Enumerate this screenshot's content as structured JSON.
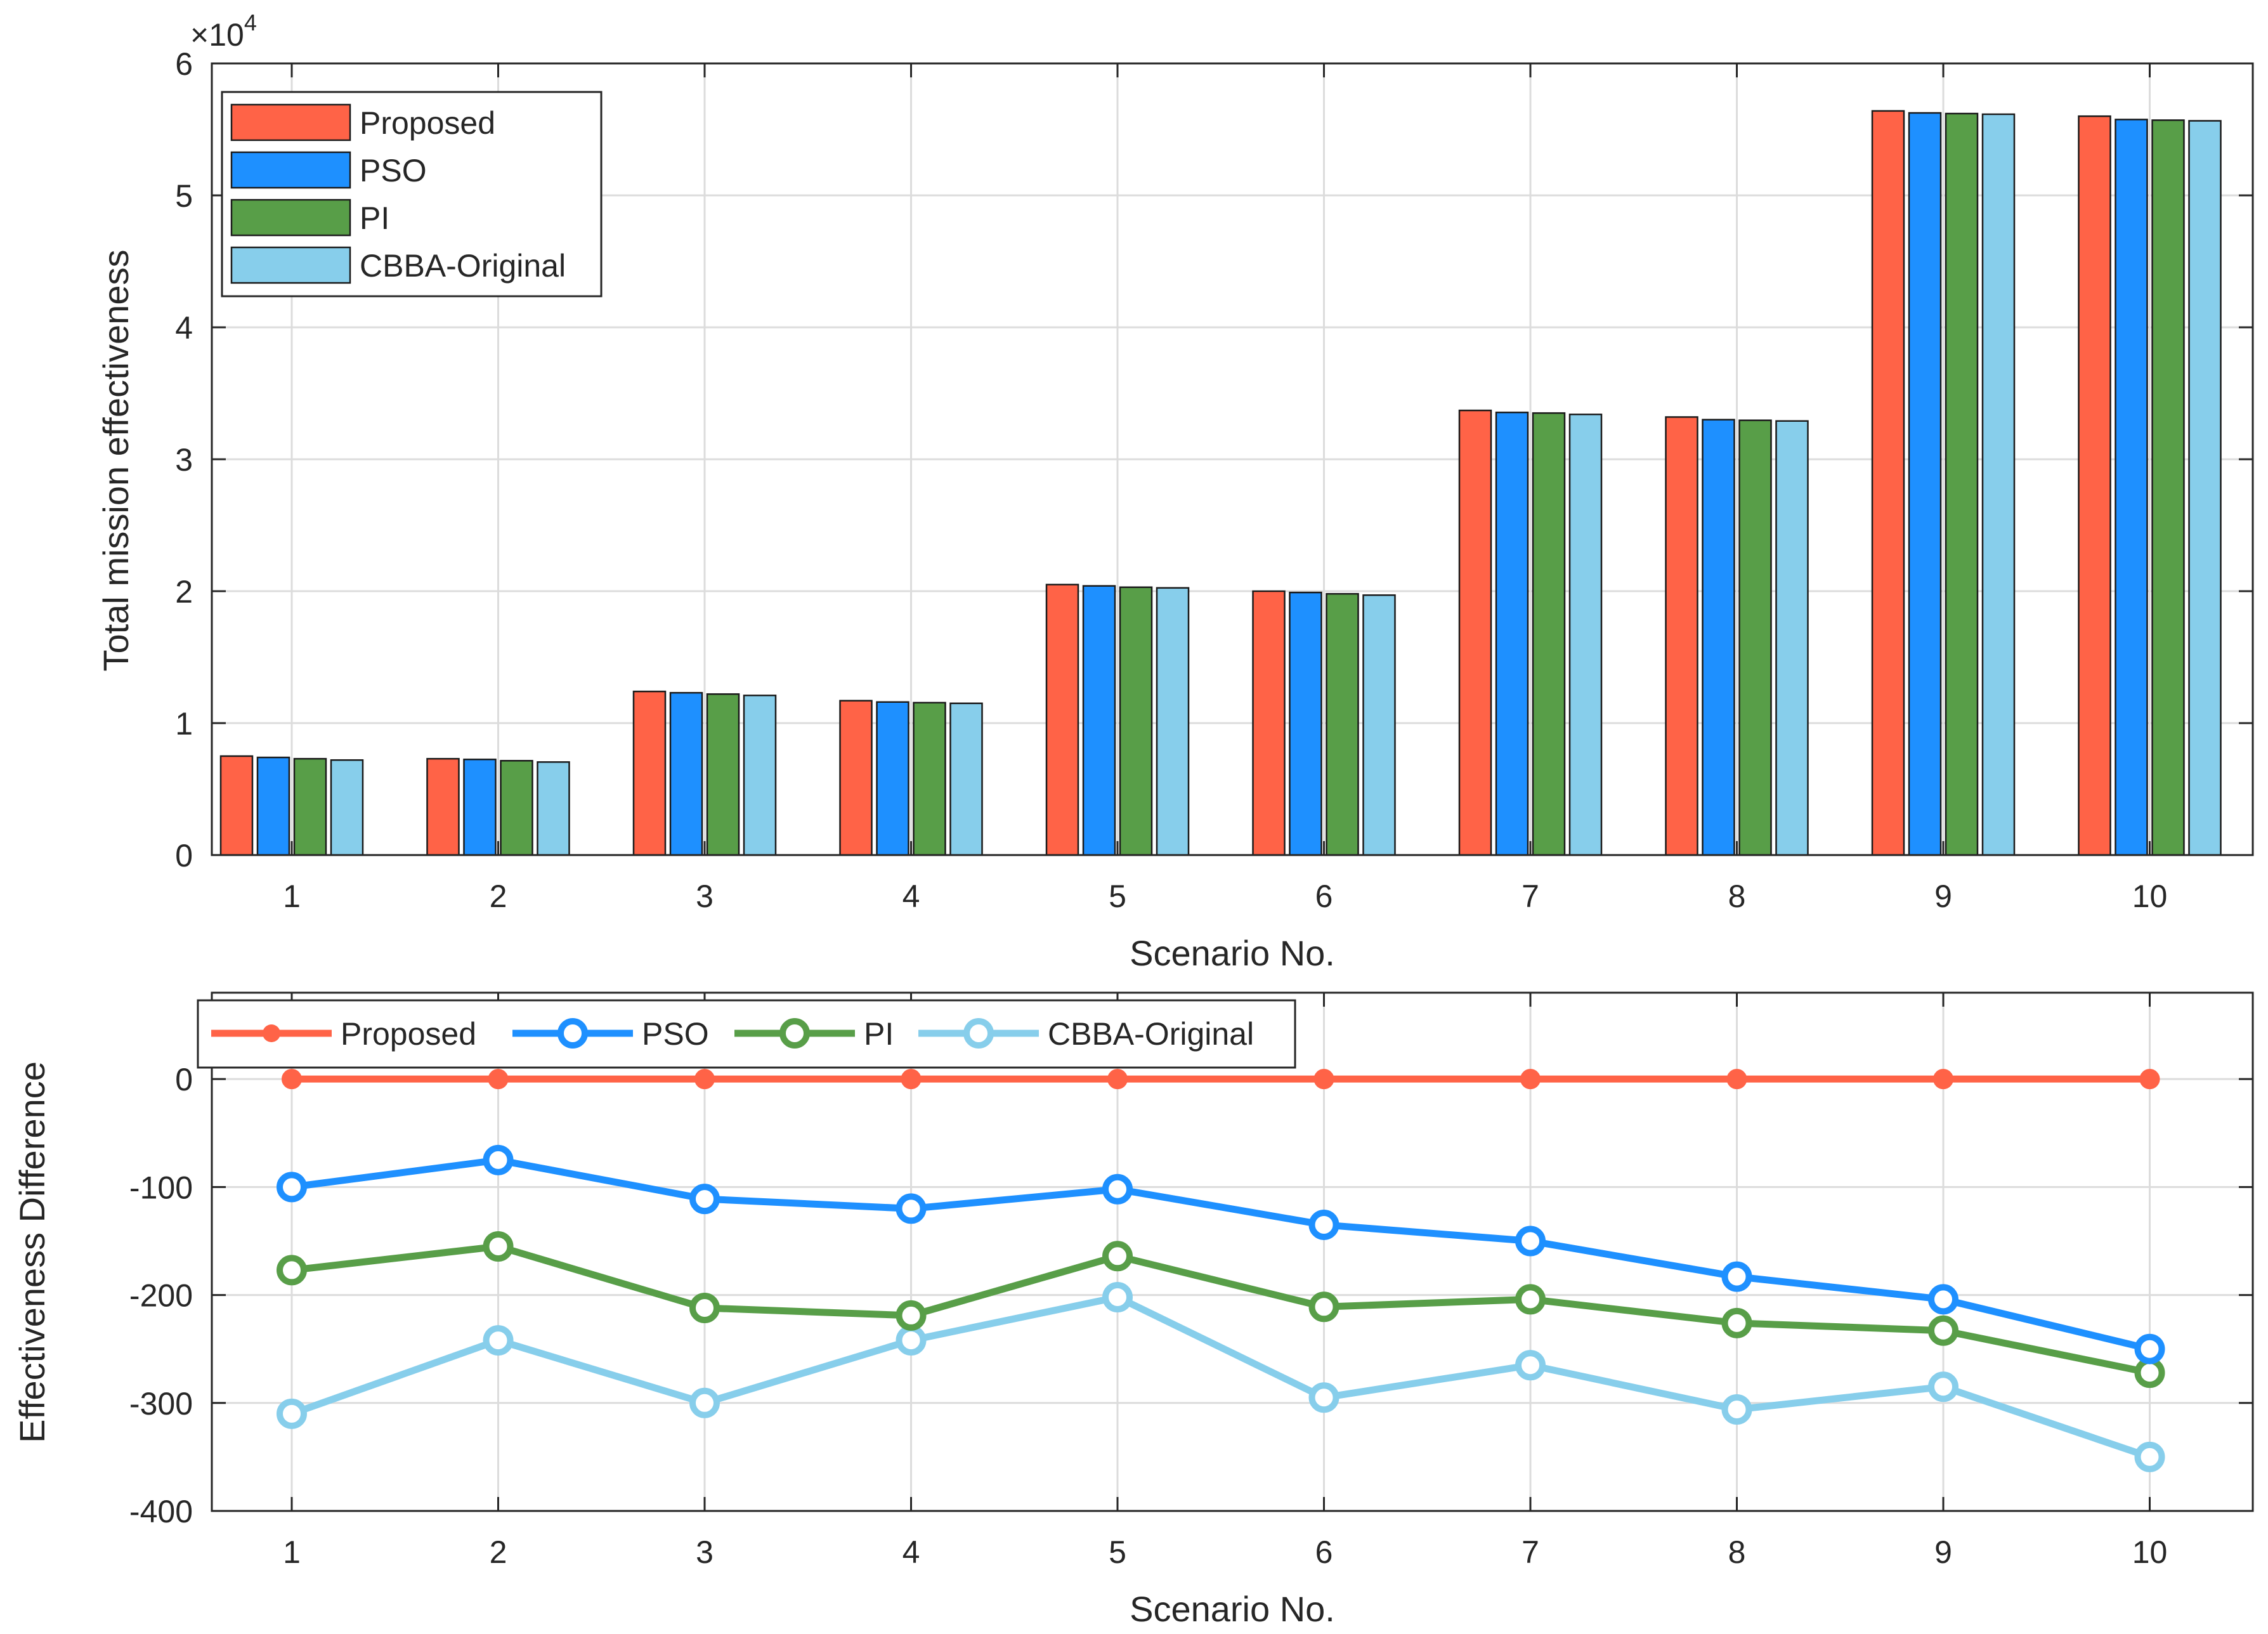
{
  "chart_data": [
    {
      "type": "bar",
      "title": "",
      "xlabel": "Scenario No.",
      "ylabel": "Total mission effectiveness",
      "y_exponent_label": "×10",
      "y_exponent_power": "4",
      "categories": [
        "1",
        "2",
        "3",
        "4",
        "5",
        "6",
        "7",
        "8",
        "9",
        "10"
      ],
      "ylim": [
        0,
        6
      ],
      "yticks": [
        "0",
        "1",
        "2",
        "3",
        "4",
        "5",
        "6"
      ],
      "grid": true,
      "legend_position": "top-left",
      "series": [
        {
          "name": "Proposed",
          "color": "#ff6347",
          "values": [
            0.75,
            0.73,
            1.24,
            1.17,
            2.05,
            2.0,
            3.37,
            3.32,
            5.64,
            5.6
          ]
        },
        {
          "name": "PSO",
          "color": "#1e90ff",
          "values": [
            0.74,
            0.725,
            1.23,
            1.16,
            2.04,
            1.99,
            3.355,
            3.3,
            5.625,
            5.575
          ]
        },
        {
          "name": "PI",
          "color": "#589e48",
          "values": [
            0.73,
            0.715,
            1.22,
            1.155,
            2.03,
            1.98,
            3.35,
            3.295,
            5.62,
            5.57
          ]
        },
        {
          "name": "CBBA-Original",
          "color": "#87ceeb",
          "values": [
            0.72,
            0.705,
            1.21,
            1.15,
            2.025,
            1.97,
            3.34,
            3.29,
            5.615,
            5.565
          ]
        }
      ]
    },
    {
      "type": "line",
      "title": "",
      "xlabel": "Scenario No.",
      "ylabel": "Effectiveness Difference",
      "x": [
        1,
        2,
        3,
        4,
        5,
        6,
        7,
        8,
        9,
        10
      ],
      "xticks": [
        "1",
        "2",
        "3",
        "4",
        "5",
        "6",
        "7",
        "8",
        "9",
        "10"
      ],
      "ylim": [
        -400,
        80
      ],
      "yticks": [
        "0",
        "-100",
        "-200",
        "-300",
        "-400"
      ],
      "grid": true,
      "legend_position": "top (horizontal)",
      "series": [
        {
          "name": "Proposed",
          "color": "#ff6347",
          "marker": "filled-circle",
          "values": [
            0,
            0,
            0,
            0,
            0,
            0,
            0,
            0,
            0,
            0
          ]
        },
        {
          "name": "PSO",
          "color": "#1e90ff",
          "marker": "open-circle",
          "values": [
            -100,
            -75,
            -111,
            -120,
            -102,
            -135,
            -150,
            -183,
            -204,
            -250
          ]
        },
        {
          "name": "PI",
          "color": "#589e48",
          "marker": "open-circle",
          "values": [
            -177,
            -155,
            -212,
            -219,
            -164,
            -211,
            -204,
            -226,
            -233,
            -272
          ]
        },
        {
          "name": "CBBA-Original",
          "color": "#87ceeb",
          "marker": "open-circle",
          "values": [
            -310,
            -242,
            -300,
            -242,
            -202,
            -295,
            -265,
            -306,
            -285,
            -350
          ]
        }
      ]
    }
  ]
}
